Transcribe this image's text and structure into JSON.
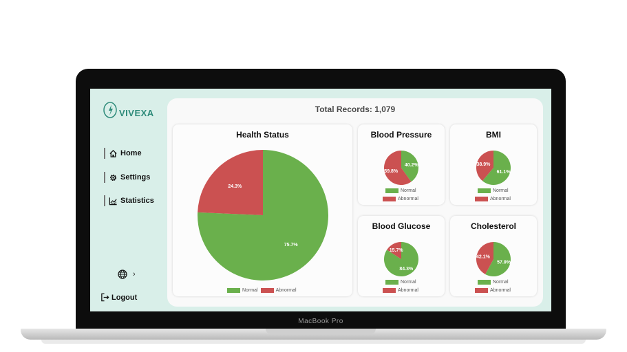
{
  "device": {
    "label": "MacBook Pro"
  },
  "brand": {
    "name": "VIVEXA"
  },
  "sidebar": {
    "items": [
      {
        "label": "Home",
        "icon": "home-icon"
      },
      {
        "label": "Settings",
        "icon": "gear-icon"
      },
      {
        "label": "Statistics",
        "icon": "chart-icon"
      }
    ],
    "language_chevron": "›",
    "logout_label": "Logout"
  },
  "main": {
    "total_records": "Total Records: 1,079"
  },
  "legend": {
    "normal": "Normal",
    "abnormal": "Abnormal"
  },
  "colors": {
    "normal": "#6ab04c",
    "abnormal": "#cb5151",
    "accent": "#2e8b7a"
  },
  "chart_data": [
    {
      "id": "health",
      "type": "pie",
      "title": "Health Status",
      "slices": [
        {
          "name": "Normal",
          "value": 75.7,
          "label": "75.7%"
        },
        {
          "name": "Abnormal",
          "value": 24.3,
          "label": "24.3%"
        }
      ]
    },
    {
      "id": "bp",
      "type": "pie",
      "title": "Blood Pressure",
      "slices": [
        {
          "name": "Normal",
          "value": 40.2,
          "label": "40.2%"
        },
        {
          "name": "Abnormal",
          "value": 59.8,
          "label": "59.8%"
        }
      ]
    },
    {
      "id": "bmi",
      "type": "pie",
      "title": "BMI",
      "slices": [
        {
          "name": "Normal",
          "value": 61.1,
          "label": "61.1%"
        },
        {
          "name": "Abnormal",
          "value": 38.9,
          "label": "38.9%"
        }
      ]
    },
    {
      "id": "glucose",
      "type": "pie",
      "title": "Blood Glucose",
      "slices": [
        {
          "name": "Normal",
          "value": 84.3,
          "label": "84.3%"
        },
        {
          "name": "Abnormal",
          "value": 15.7,
          "label": "15.7%"
        }
      ]
    },
    {
      "id": "chol",
      "type": "pie",
      "title": "Cholesterol",
      "slices": [
        {
          "name": "Normal",
          "value": 57.9,
          "label": "57.9%"
        },
        {
          "name": "Abnormal",
          "value": 42.1,
          "label": "42.1%"
        }
      ]
    }
  ]
}
